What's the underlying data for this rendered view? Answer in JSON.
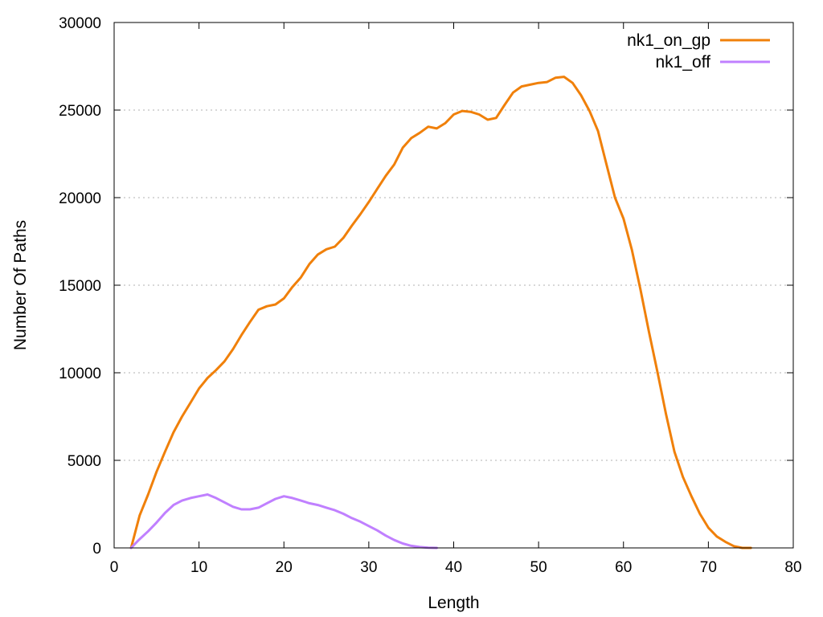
{
  "chart_data": {
    "type": "line",
    "title": "",
    "xlabel": "Length",
    "ylabel": "Number Of Paths",
    "xlim": [
      0,
      80
    ],
    "ylim": [
      0,
      30000
    ],
    "x_ticks": [
      0,
      10,
      20,
      30,
      40,
      50,
      60,
      70,
      80
    ],
    "y_ticks": [
      0,
      5000,
      10000,
      15000,
      20000,
      25000,
      30000
    ],
    "x_tick_labels": [
      "0",
      "10",
      "20",
      "30",
      "40",
      "50",
      "60",
      "70",
      "80"
    ],
    "y_tick_labels": [
      "0",
      "5000",
      "10000",
      "15000",
      "20000",
      "25000",
      "30000"
    ],
    "grid": "horizontal dotted",
    "legend_position": "top-right",
    "series": [
      {
        "name": "nk1_on_gp",
        "color": "#f0800a",
        "x": [
          2,
          3,
          4,
          5,
          6,
          7,
          8,
          9,
          10,
          11,
          12,
          13,
          14,
          15,
          16,
          17,
          18,
          19,
          20,
          21,
          22,
          23,
          24,
          25,
          26,
          27,
          28,
          29,
          30,
          31,
          32,
          33,
          34,
          35,
          36,
          37,
          38,
          39,
          40,
          41,
          42,
          43,
          44,
          45,
          46,
          47,
          48,
          49,
          50,
          51,
          52,
          53,
          54,
          55,
          56,
          57,
          58,
          59,
          60,
          61,
          62,
          63,
          64,
          65,
          66,
          67,
          68,
          69,
          70,
          71,
          72,
          73,
          74,
          75
        ],
        "y": [
          0,
          1850,
          3050,
          4350,
          5500,
          6600,
          7500,
          8300,
          9100,
          9700,
          10150,
          10650,
          11350,
          12150,
          12900,
          13600,
          13800,
          13900,
          14250,
          14900,
          15450,
          16200,
          16750,
          17050,
          17200,
          17700,
          18400,
          19050,
          19750,
          20500,
          21250,
          21900,
          22850,
          23400,
          23700,
          24050,
          23950,
          24250,
          24750,
          24950,
          24900,
          24750,
          24450,
          24550,
          25300,
          26000,
          26350,
          26450,
          26550,
          26600,
          26850,
          26900,
          26550,
          25850,
          24950,
          23800,
          21900,
          20000,
          18800,
          17000,
          14750,
          12350,
          10050,
          7650,
          5500,
          4050,
          2950,
          1950,
          1150,
          650,
          350,
          100,
          0,
          0
        ]
      },
      {
        "name": "nk1_off",
        "color": "#c080ff",
        "x": [
          2,
          3,
          4,
          5,
          6,
          7,
          8,
          9,
          10,
          11,
          12,
          13,
          14,
          15,
          16,
          17,
          18,
          19,
          20,
          21,
          22,
          23,
          24,
          25,
          26,
          27,
          28,
          29,
          30,
          31,
          32,
          33,
          34,
          35,
          36,
          37,
          38
        ],
        "y": [
          0,
          500,
          950,
          1450,
          2000,
          2450,
          2700,
          2850,
          2950,
          3050,
          2850,
          2600,
          2350,
          2200,
          2200,
          2300,
          2550,
          2800,
          2950,
          2850,
          2700,
          2550,
          2450,
          2300,
          2150,
          1950,
          1700,
          1500,
          1250,
          1000,
          700,
          450,
          250,
          120,
          50,
          10,
          0
        ]
      }
    ]
  }
}
